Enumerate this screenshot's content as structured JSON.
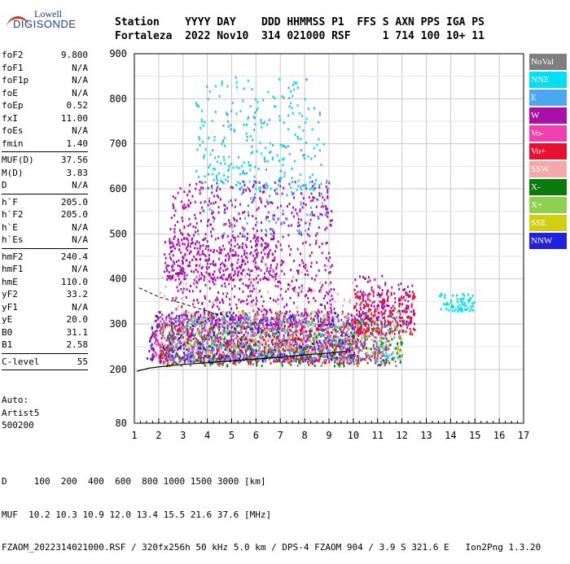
{
  "logo": {
    "line1": "Lowell",
    "line2": "DIGISONDE"
  },
  "header": {
    "row1": "Station    YYYY DAY    DDD HHMMSS P1  FFS S AXN PPS IGA PS",
    "row2": "Fortaleza  2022 Nov10  314 021000 RSF     1 714 100 10+ 11"
  },
  "params": [
    {
      "k": "foF2",
      "v": "9.800"
    },
    {
      "k": "foF1",
      "v": "N/A"
    },
    {
      "k": "foF1p",
      "v": "N/A"
    },
    {
      "k": "foE",
      "v": "N/A"
    },
    {
      "k": "foEp",
      "v": "0.52"
    },
    {
      "k": "fxI",
      "v": "11.00"
    },
    {
      "k": "foEs",
      "v": "N/A"
    },
    {
      "k": "fmin",
      "v": "1.40"
    },
    {
      "sep": true
    },
    {
      "k": "MUF(D)",
      "v": "37.56"
    },
    {
      "k": "M(D)",
      "v": "3.83"
    },
    {
      "k": "D",
      "v": "N/A"
    },
    {
      "sep": true
    },
    {
      "k": "h`F",
      "v": "205.0"
    },
    {
      "k": "h`F2",
      "v": "205.0"
    },
    {
      "k": "h`E",
      "v": "N/A"
    },
    {
      "k": "h`Es",
      "v": "N/A"
    },
    {
      "sep": true
    },
    {
      "k": "hmF2",
      "v": "240.4"
    },
    {
      "k": "hmF1",
      "v": "N/A"
    },
    {
      "k": "hmE",
      "v": "110.0"
    },
    {
      "k": "yF2",
      "v": "33.2"
    },
    {
      "k": "yF1",
      "v": "N/A"
    },
    {
      "k": "yE",
      "v": "20.0"
    },
    {
      "k": "B0",
      "v": "31.1"
    },
    {
      "k": "B1",
      "v": "2.58"
    },
    {
      "sep": true
    },
    {
      "k": "C-level",
      "v": "55"
    },
    {
      "sep": true
    }
  ],
  "auto": {
    "line1": "Auto:",
    "line2": "Artist5",
    "line3": "500200"
  },
  "legend": [
    {
      "label": "NoVal",
      "color": "#7f7f7f"
    },
    {
      "label": "NNE",
      "color": "#00e0f0"
    },
    {
      "label": "E",
      "color": "#4aa8f0"
    },
    {
      "label": "W",
      "color": "#aa10a8"
    },
    {
      "label": "Vo-",
      "color": "#f040b0"
    },
    {
      "label": "Vo+",
      "color": "#e81030"
    },
    {
      "label": "SSW",
      "color": "#f4a8a8"
    },
    {
      "label": "X-",
      "color": "#0a7a0a"
    },
    {
      "label": "X+",
      "color": "#90d050"
    },
    {
      "label": "SSE",
      "color": "#d0d010"
    },
    {
      "label": "NNW",
      "color": "#2020e0"
    }
  ],
  "footer": {
    "line1": "D     100  200  400  600  800 1000 1500 3000 [km]",
    "line2": "MUF  10.2 10.3 10.9 12.0 13.4 15.5 21.6 37.6 [MHz]",
    "line3": "FZAOM_2022314021000.RSF / 320fx256h 50 kHz 5.0 km / DPS-4 FZAOM 904 / 3.9 S 321.6 E   Ion2Png 1.3.20"
  },
  "chart_data": {
    "type": "scatter",
    "xlim": [
      1,
      17
    ],
    "ylim": [
      80,
      900
    ],
    "x_ticks": [
      1,
      2,
      3,
      4,
      5,
      6,
      7,
      8,
      9,
      10,
      11,
      12,
      13,
      14,
      15,
      16,
      17
    ],
    "y_ticks": [
      80,
      200,
      300,
      400,
      500,
      600,
      700,
      800,
      900
    ],
    "grid": true,
    "trace": {
      "x": [
        1.1,
        1.6,
        2.2,
        3,
        4,
        5,
        6,
        7,
        8,
        9,
        9.7,
        9.8
      ],
      "y": [
        196,
        203,
        207,
        211,
        215,
        219,
        223,
        227,
        232,
        236,
        240,
        245
      ]
    },
    "profile": {
      "x": [
        1.2,
        2,
        3,
        3.6,
        4.2,
        5
      ],
      "y": [
        380,
        360,
        345,
        335,
        325,
        315
      ]
    },
    "clusters": [
      {
        "color": "#aa10a8",
        "x0": 1.6,
        "x1": 10.5,
        "y0": 225,
        "y1": 330,
        "n": 900
      },
      {
        "color": "#aa10a8",
        "x0": 2.4,
        "x1": 9.2,
        "y0": 300,
        "y1": 620,
        "n": 800
      },
      {
        "color": "#aa10a8",
        "x0": 2.2,
        "x1": 6.8,
        "y0": 400,
        "y1": 500,
        "n": 300
      },
      {
        "color": "#f040b0",
        "x0": 1.8,
        "x1": 10,
        "y0": 220,
        "y1": 320,
        "n": 400
      },
      {
        "color": "#e81030",
        "x0": 2,
        "x1": 11.5,
        "y0": 215,
        "y1": 300,
        "n": 450
      },
      {
        "color": "#4aa8f0",
        "x0": 2.2,
        "x1": 12,
        "y0": 220,
        "y1": 320,
        "n": 500
      },
      {
        "color": "#00e0f0",
        "x0": 3.5,
        "x1": 8.5,
        "y0": 600,
        "y1": 850,
        "n": 180
      },
      {
        "color": "#4aa8f0",
        "x0": 3.5,
        "x1": 9,
        "y0": 500,
        "y1": 850,
        "n": 180
      },
      {
        "color": "#0a7a0a",
        "x0": 2,
        "x1": 12,
        "y0": 210,
        "y1": 310,
        "n": 250
      },
      {
        "color": "#90d050",
        "x0": 3,
        "x1": 12,
        "y0": 220,
        "y1": 330,
        "n": 150
      },
      {
        "color": "#d0d010",
        "x0": 3,
        "x1": 12,
        "y0": 240,
        "y1": 330,
        "n": 120
      },
      {
        "color": "#2020e0",
        "x0": 1.5,
        "x1": 10,
        "y0": 220,
        "y1": 330,
        "n": 150
      },
      {
        "color": "#7f7f7f",
        "x0": 2,
        "x1": 12,
        "y0": 210,
        "y1": 320,
        "n": 120
      },
      {
        "color": "#f4a8a8",
        "x0": 2,
        "x1": 10,
        "y0": 240,
        "y1": 440,
        "n": 120
      },
      {
        "color": "#00e0f0",
        "x0": 13.5,
        "x1": 15,
        "y0": 330,
        "y1": 370,
        "n": 70
      },
      {
        "color": "#e81030",
        "x0": 10,
        "x1": 12.5,
        "y0": 280,
        "y1": 380,
        "n": 200
      },
      {
        "color": "#aa10a8",
        "x0": 10,
        "x1": 12.5,
        "y0": 300,
        "y1": 410,
        "n": 150
      }
    ]
  }
}
